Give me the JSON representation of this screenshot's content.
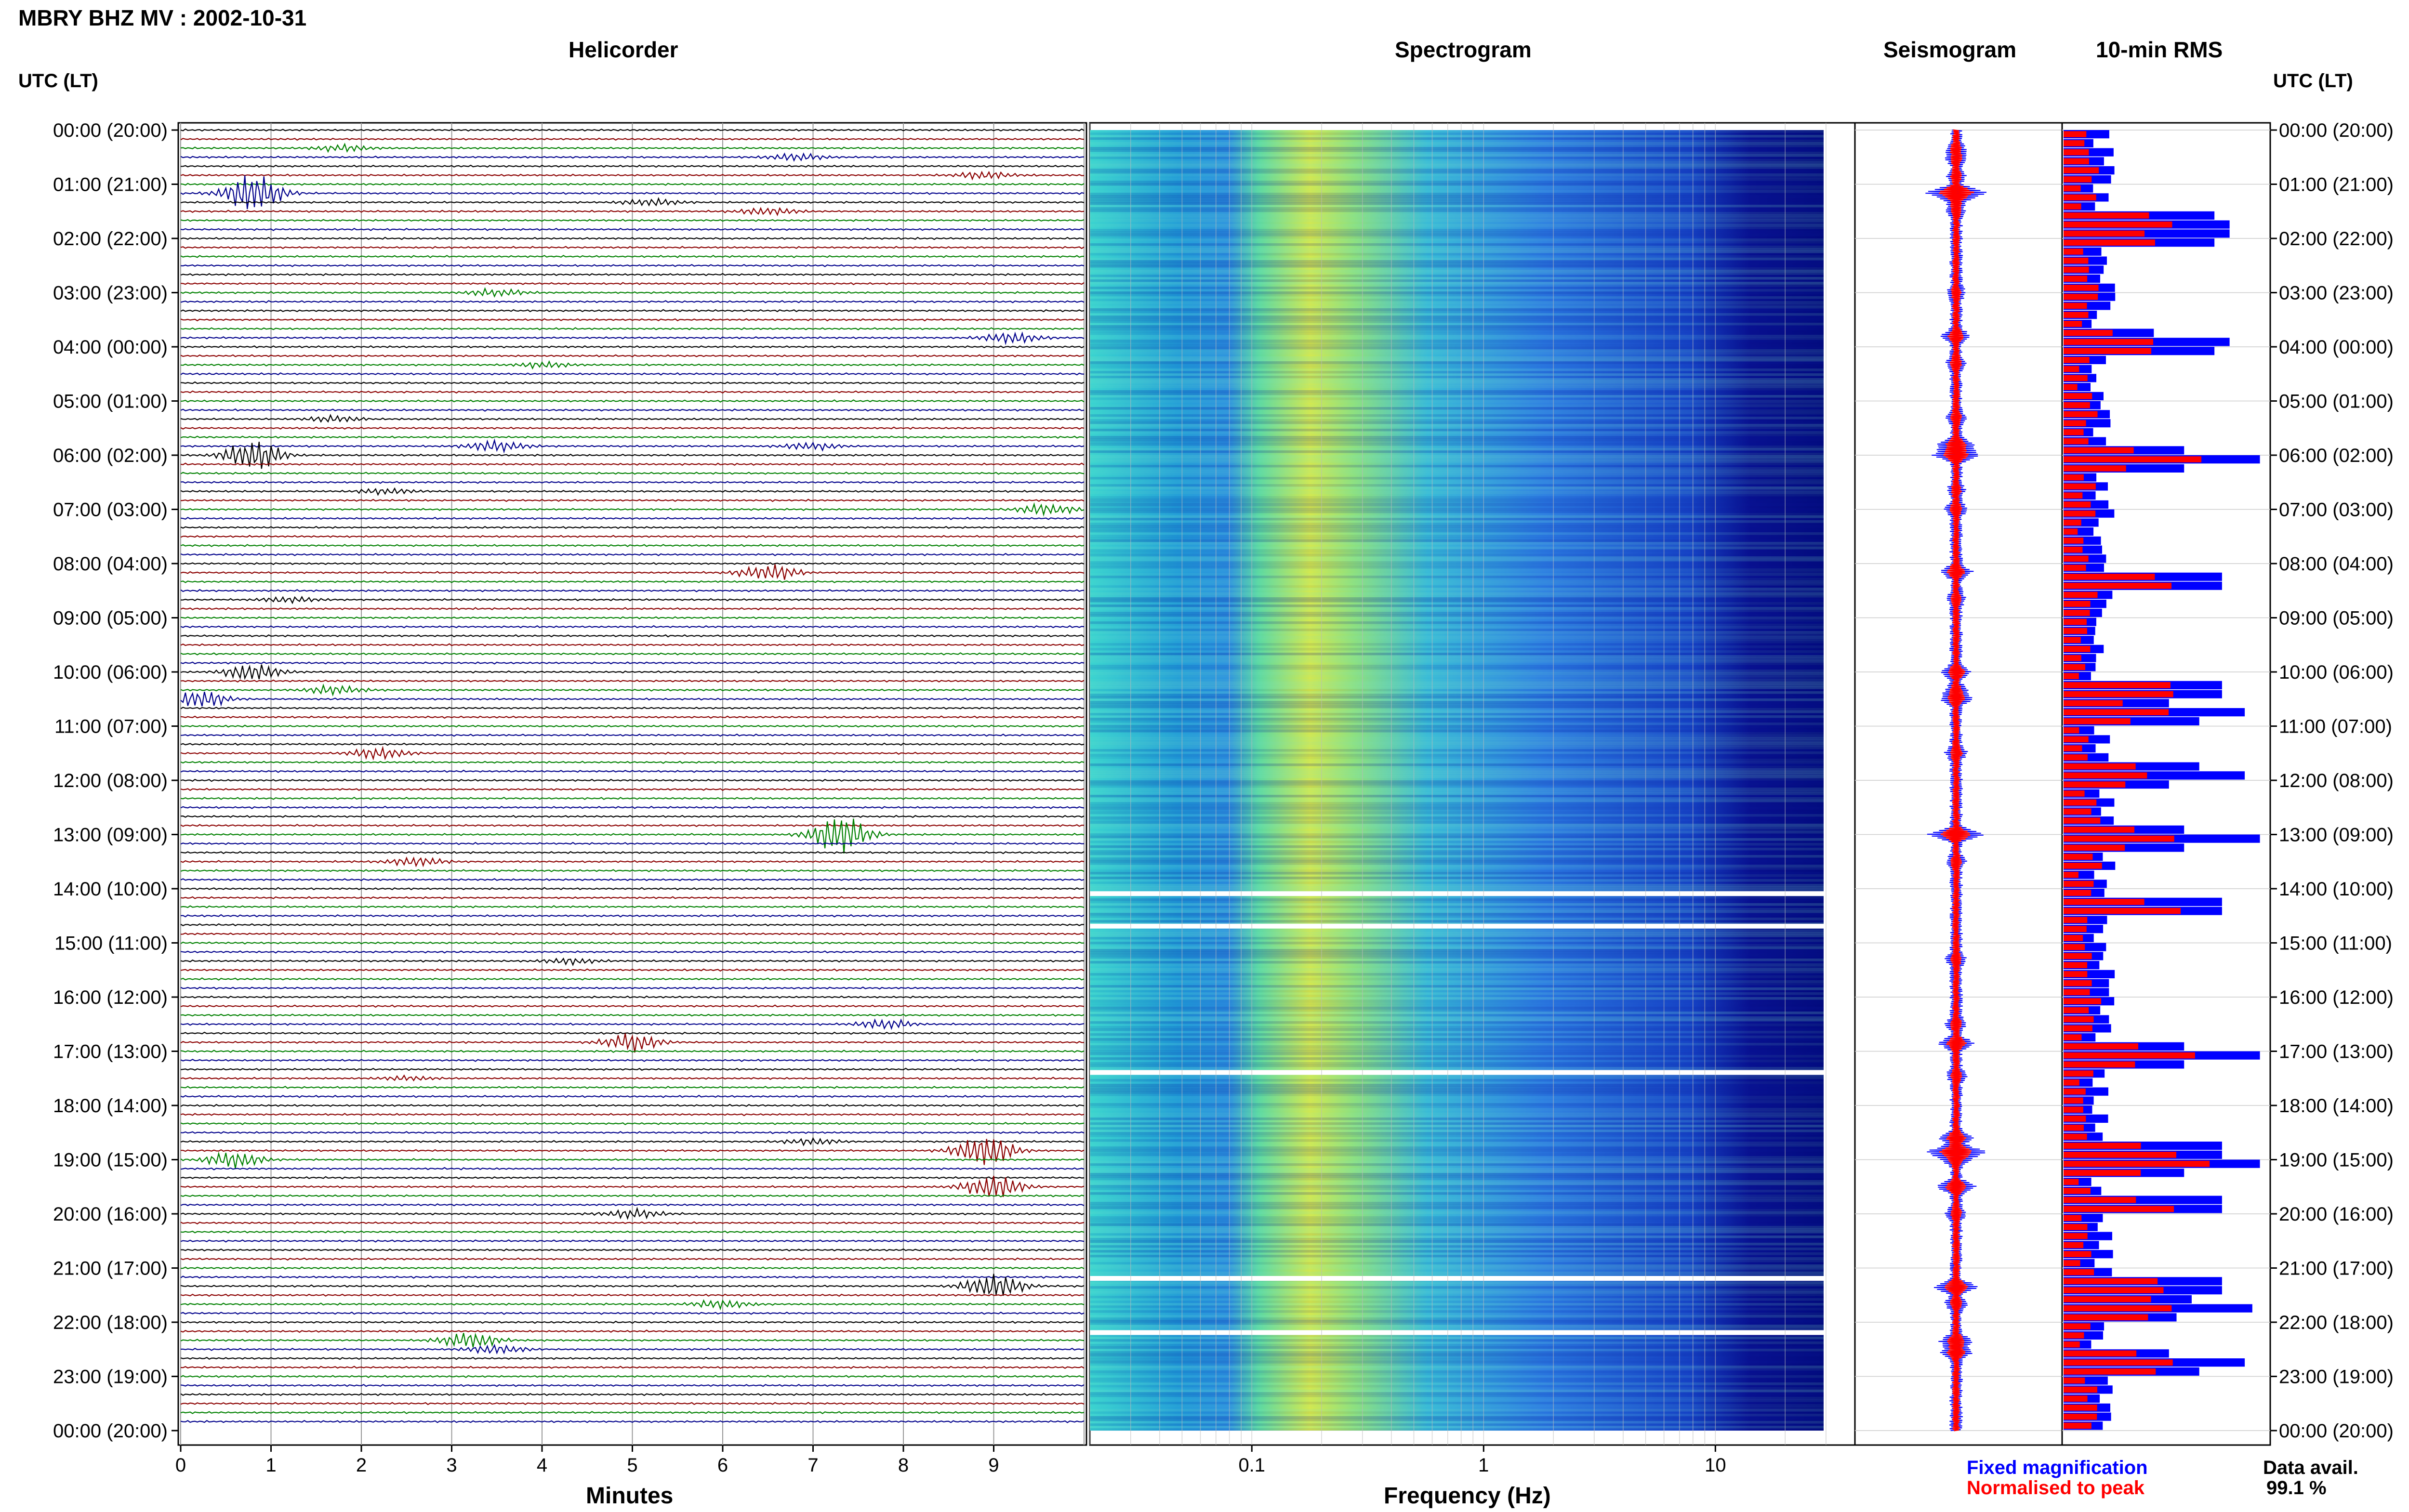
{
  "page_title": "MBRY BHZ MV : 2002-10-31",
  "panels": {
    "helicorder": "Helicorder",
    "spectrogram": "Spectrogram",
    "seismogram": "Seismogram",
    "rms": "10-min RMS"
  },
  "axis_header_left": "UTC (LT)",
  "axis_header_right": "UTC (LT)",
  "xlabels": {
    "helicorder": "Minutes",
    "spectrogram": "Frequency (Hz)"
  },
  "legend": {
    "fixed": "Fixed magnification",
    "normalised": "Normalised to peak",
    "fixed_color": "#0000ff",
    "normalised_color": "#ff0000"
  },
  "data_avail": {
    "label": "Data avail.",
    "value": "99.1 %"
  },
  "chart_data": [
    {
      "type": "line",
      "panel": "helicorder",
      "x_ticks": [
        "0",
        "1",
        "2",
        "3",
        "4",
        "5",
        "6",
        "7",
        "8",
        "9"
      ],
      "xlim": [
        0,
        10
      ],
      "xlabel": "Minutes",
      "y_ticks": [
        "00:00 (20:00)",
        "01:00 (21:00)",
        "02:00 (22:00)",
        "03:00 (23:00)",
        "04:00 (00:00)",
        "05:00 (01:00)",
        "06:00 (02:00)",
        "07:00 (03:00)",
        "08:00 (04:00)",
        "09:00 (05:00)",
        "10:00 (06:00)",
        "11:00 (07:00)",
        "12:00 (08:00)",
        "13:00 (09:00)",
        "14:00 (10:00)",
        "15:00 (11:00)",
        "16:00 (12:00)",
        "17:00 (13:00)",
        "18:00 (14:00)",
        "19:00 (15:00)",
        "20:00 (16:00)",
        "21:00 (17:00)",
        "22:00 (18:00)",
        "23:00 (19:00)",
        "00:00 (20:00)"
      ],
      "traces_per_hour": 6,
      "trace_colors": [
        "#000000",
        "#8b0000",
        "#008000",
        "#00008b"
      ],
      "events": [
        {
          "hour": 0.35,
          "minute": 1.8,
          "amp": 0.45
        },
        {
          "hour": 0.52,
          "minute": 6.8,
          "amp": 0.5
        },
        {
          "hour": 0.85,
          "minute": 8.9,
          "amp": 0.5
        },
        {
          "hour": 1.15,
          "minute": 0.8,
          "amp": 2.5
        },
        {
          "hour": 1.3,
          "minute": 5.2,
          "amp": 0.6
        },
        {
          "hour": 1.5,
          "minute": 6.5,
          "amp": 0.4
        },
        {
          "hour": 3.0,
          "minute": 3.5,
          "amp": 0.4
        },
        {
          "hour": 3.8,
          "minute": 9.2,
          "amp": 0.9
        },
        {
          "hour": 4.3,
          "minute": 4.0,
          "amp": 0.5
        },
        {
          "hour": 5.3,
          "minute": 1.7,
          "amp": 0.5
        },
        {
          "hour": 5.8,
          "minute": 3.5,
          "amp": 1.0
        },
        {
          "hour": 6.0,
          "minute": 0.8,
          "amp": 1.7
        },
        {
          "hour": 5.85,
          "minute": 7.0,
          "amp": 0.5
        },
        {
          "hour": 6.65,
          "minute": 2.3,
          "amp": 0.4
        },
        {
          "hour": 7.0,
          "minute": 9.6,
          "amp": 0.6
        },
        {
          "hour": 8.15,
          "minute": 6.5,
          "amp": 1.1
        },
        {
          "hour": 8.65,
          "minute": 1.2,
          "amp": 0.4
        },
        {
          "hour": 10.0,
          "minute": 0.8,
          "amp": 1.0
        },
        {
          "hour": 10.35,
          "minute": 1.7,
          "amp": 0.6
        },
        {
          "hour": 10.5,
          "minute": 0.2,
          "amp": 1.0
        },
        {
          "hour": 11.5,
          "minute": 2.2,
          "amp": 0.6
        },
        {
          "hour": 13.0,
          "minute": 7.3,
          "amp": 2.2
        },
        {
          "hour": 13.5,
          "minute": 2.6,
          "amp": 0.5
        },
        {
          "hour": 15.3,
          "minute": 4.3,
          "amp": 0.5
        },
        {
          "hour": 16.5,
          "minute": 7.8,
          "amp": 0.5
        },
        {
          "hour": 16.85,
          "minute": 5.0,
          "amp": 1.2
        },
        {
          "hour": 17.45,
          "minute": 2.5,
          "amp": 0.5
        },
        {
          "hour": 18.6,
          "minute": 7.0,
          "amp": 1.2
        },
        {
          "hour": 18.85,
          "minute": 8.9,
          "amp": 2.4
        },
        {
          "hour": 19.0,
          "minute": 0.6,
          "amp": 0.9
        },
        {
          "hour": 19.5,
          "minute": 9.0,
          "amp": 1.4
        },
        {
          "hour": 20.0,
          "minute": 5.0,
          "amp": 0.5
        },
        {
          "hour": 21.35,
          "minute": 9.0,
          "amp": 1.7
        },
        {
          "hour": 21.65,
          "minute": 6.0,
          "amp": 0.6
        },
        {
          "hour": 22.35,
          "minute": 3.2,
          "amp": 1.1
        },
        {
          "hour": 22.55,
          "minute": 3.5,
          "amp": 1.1
        }
      ]
    },
    {
      "type": "heatmap",
      "panel": "spectrogram",
      "x_scale": "log",
      "xlim": [
        0.02,
        40
      ],
      "x_ticks": [
        "0.1",
        "1",
        "10"
      ],
      "xlabel": "Frequency (Hz)",
      "data_gaps_hour": [
        14.1,
        14.7,
        17.4,
        21.2,
        22.2
      ]
    },
    {
      "type": "line",
      "panel": "seismogram",
      "series": [
        {
          "name": "Fixed magnification"
        },
        {
          "name": "Normalised to peak"
        }
      ]
    },
    {
      "type": "bar",
      "panel": "10-min RMS",
      "orientation": "horizontal",
      "bins": 144,
      "series": [
        {
          "name": "Fixed magnification",
          "color": "#0000ff"
        },
        {
          "name": "Normalised to peak",
          "color": "#ff0000"
        }
      ],
      "peaks_hour": [
        1.6,
        1.9,
        3.9,
        6.0,
        8.25,
        10.25,
        10.7,
        11.8,
        13.0,
        14.25,
        17.0,
        18.75,
        19.0,
        19.75,
        21.25,
        21.65,
        22.7
      ]
    }
  ]
}
